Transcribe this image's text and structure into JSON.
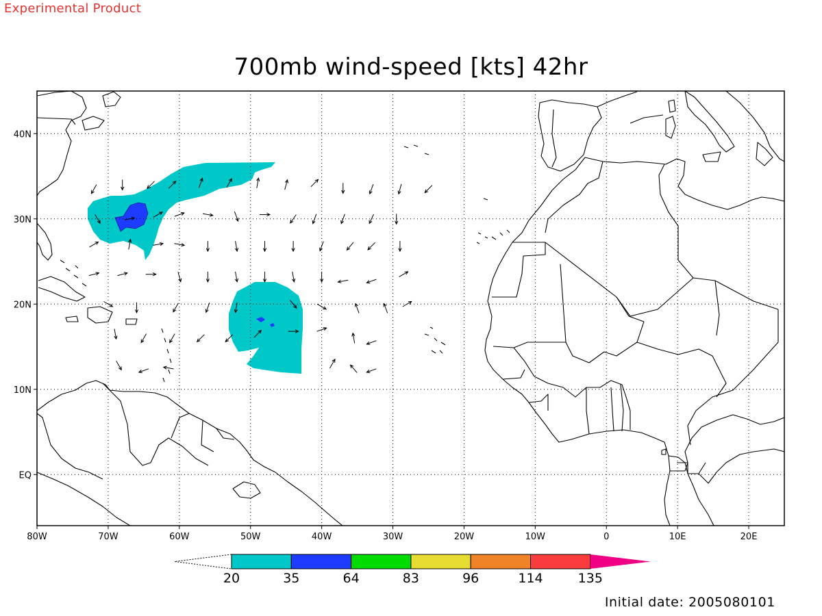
{
  "header": {
    "experimental_label": "Experimental Product",
    "title": "700mb wind-speed [kts] 42hr"
  },
  "map": {
    "projection": "cylindrical",
    "lon_range": [
      -80,
      25
    ],
    "lat_range": [
      -6,
      45
    ],
    "lon_ticks": [
      {
        "lon": -80,
        "label": "80W"
      },
      {
        "lon": -70,
        "label": "70W"
      },
      {
        "lon": -60,
        "label": "60W"
      },
      {
        "lon": -50,
        "label": "50W"
      },
      {
        "lon": -40,
        "label": "40W"
      },
      {
        "lon": -30,
        "label": "30W"
      },
      {
        "lon": -20,
        "label": "20W"
      },
      {
        "lon": -10,
        "label": "10W"
      },
      {
        "lon": 0,
        "label": "0"
      },
      {
        "lon": 10,
        "label": "10E"
      },
      {
        "lon": 20,
        "label": "20E"
      }
    ],
    "lat_ticks": [
      {
        "lat": 40,
        "label": "40N"
      },
      {
        "lat": 30,
        "label": "30N"
      },
      {
        "lat": 20,
        "label": "20N"
      },
      {
        "lat": 10,
        "label": "10N"
      },
      {
        "lat": 0,
        "label": "EQ"
      }
    ],
    "grid": "dotted",
    "colors": {
      "coast": "#000000",
      "frame": "#000000"
    },
    "wind_vectors_note_units": "kts",
    "wind_vectors": [
      {
        "lon": -72,
        "lat": 33.5,
        "dir": 240
      },
      {
        "lon": -68,
        "lat": 34,
        "dir": 270
      },
      {
        "lon": -64,
        "lat": 34,
        "dir": 225
      },
      {
        "lon": -61,
        "lat": 34,
        "dir": 45
      },
      {
        "lon": -57,
        "lat": 34.2,
        "dir": 70
      },
      {
        "lon": -53,
        "lat": 34.2,
        "dir": 60
      },
      {
        "lon": -49,
        "lat": 34.2,
        "dir": 80
      },
      {
        "lon": -45,
        "lat": 34,
        "dir": 75
      },
      {
        "lon": -41,
        "lat": 34.2,
        "dir": 45
      },
      {
        "lon": -37,
        "lat": 33.6,
        "dir": 270
      },
      {
        "lon": -33,
        "lat": 33.5,
        "dir": 250
      },
      {
        "lon": -29,
        "lat": 33.5,
        "dir": 255
      },
      {
        "lon": -25,
        "lat": 33.5,
        "dir": 225
      },
      {
        "lon": -71.5,
        "lat": 30,
        "dir": 300
      },
      {
        "lon": -67,
        "lat": 30,
        "dir": 10
      },
      {
        "lon": -63,
        "lat": 30.5,
        "dir": 30
      },
      {
        "lon": -60,
        "lat": 30.5,
        "dir": 20
      },
      {
        "lon": -56,
        "lat": 30.5,
        "dir": 350
      },
      {
        "lon": -52,
        "lat": 30.3,
        "dir": 290
      },
      {
        "lon": -48,
        "lat": 30.5,
        "dir": 0
      },
      {
        "lon": -44,
        "lat": 30,
        "dir": 235
      },
      {
        "lon": -41,
        "lat": 30,
        "dir": 250
      },
      {
        "lon": -37,
        "lat": 30,
        "dir": 250
      },
      {
        "lon": -33,
        "lat": 30,
        "dir": 245
      },
      {
        "lon": -29.5,
        "lat": 30,
        "dir": 270
      },
      {
        "lon": -72,
        "lat": 27,
        "dir": 30
      },
      {
        "lon": -67,
        "lat": 27,
        "dir": 80
      },
      {
        "lon": -63,
        "lat": 27,
        "dir": 10
      },
      {
        "lon": -60,
        "lat": 27,
        "dir": 350
      },
      {
        "lon": -56,
        "lat": 26.8,
        "dir": 270
      },
      {
        "lon": -52,
        "lat": 26.8,
        "dir": 280
      },
      {
        "lon": -48,
        "lat": 26.8,
        "dir": 270
      },
      {
        "lon": -44,
        "lat": 26.8,
        "dir": 270
      },
      {
        "lon": -40,
        "lat": 26.8,
        "dir": 250
      },
      {
        "lon": -36,
        "lat": 26.8,
        "dir": 230
      },
      {
        "lon": -33,
        "lat": 26.8,
        "dir": 225
      },
      {
        "lon": -29,
        "lat": 26.8,
        "dir": 270
      },
      {
        "lon": -72,
        "lat": 23.5,
        "dir": 15
      },
      {
        "lon": -68,
        "lat": 23.5,
        "dir": 15
      },
      {
        "lon": -64,
        "lat": 23.5,
        "dir": 0
      },
      {
        "lon": -60,
        "lat": 23.2,
        "dir": 285
      },
      {
        "lon": -56,
        "lat": 23.2,
        "dir": 270
      },
      {
        "lon": -52,
        "lat": 23.2,
        "dir": 280
      },
      {
        "lon": -48,
        "lat": 23.2,
        "dir": 270
      },
      {
        "lon": -44,
        "lat": 23.2,
        "dir": 280
      },
      {
        "lon": -40,
        "lat": 23.2,
        "dir": 270
      },
      {
        "lon": -37,
        "lat": 22.7,
        "dir": 190
      },
      {
        "lon": -33,
        "lat": 22.7,
        "dir": 200
      },
      {
        "lon": -28.5,
        "lat": 23.5,
        "dir": 30
      },
      {
        "lon": -70,
        "lat": 20,
        "dir": 330
      },
      {
        "lon": -66,
        "lat": 19.6,
        "dir": 270
      },
      {
        "lon": -60.5,
        "lat": 19.6,
        "dir": 240
      },
      {
        "lon": -56,
        "lat": 19.6,
        "dir": 250
      },
      {
        "lon": -52,
        "lat": 19.6,
        "dir": 260
      },
      {
        "lon": -44,
        "lat": 20,
        "dir": 310
      },
      {
        "lon": -40,
        "lat": 19.7,
        "dir": 330
      },
      {
        "lon": -35,
        "lat": 19.5,
        "dir": 110
      },
      {
        "lon": -31,
        "lat": 19.5,
        "dir": 110
      },
      {
        "lon": -28,
        "lat": 20,
        "dir": 30
      },
      {
        "lon": -69,
        "lat": 16.5,
        "dir": 280
      },
      {
        "lon": -65,
        "lat": 16,
        "dir": 240
      },
      {
        "lon": -61,
        "lat": 16,
        "dir": 240
      },
      {
        "lon": -57,
        "lat": 16,
        "dir": 225
      },
      {
        "lon": -53,
        "lat": 16,
        "dir": 225
      },
      {
        "lon": -49,
        "lat": 16.5,
        "dir": 45
      },
      {
        "lon": -44,
        "lat": 16.8,
        "dir": 0
      },
      {
        "lon": -40,
        "lat": 17,
        "dir": 20
      },
      {
        "lon": -35.5,
        "lat": 16,
        "dir": 100
      },
      {
        "lon": -33,
        "lat": 15.5,
        "dir": 200
      },
      {
        "lon": -68.5,
        "lat": 12.8,
        "dir": 300
      },
      {
        "lon": -65,
        "lat": 12.2,
        "dir": 200
      },
      {
        "lon": -61.5,
        "lat": 12.5,
        "dir": 170
      },
      {
        "lon": -38.5,
        "lat": 13,
        "dir": 60
      },
      {
        "lon": -35.5,
        "lat": 12.4,
        "dir": 130
      },
      {
        "lon": -33,
        "lat": 12.2,
        "dir": 200
      }
    ]
  },
  "shading": {
    "units": "kts",
    "regions": [
      {
        "name": "azores-cyclone",
        "level": "20-35",
        "color": "#00c8c8"
      },
      {
        "name": "azores-core",
        "level": "35-64",
        "color": "#1e3cff"
      },
      {
        "name": "tropical-storm",
        "level": "20-35",
        "color": "#00c8c8"
      },
      {
        "name": "tropical-storm-core",
        "level": "35-64",
        "color": "#1e3cff"
      }
    ]
  },
  "colorbar": {
    "labels": [
      "20",
      "35",
      "64",
      "83",
      "96",
      "114",
      "135"
    ],
    "colors": [
      "#00c8c8",
      "#1e3cff",
      "#00dc00",
      "#e6dc32",
      "#f08228",
      "#fa3c3c",
      "#f00082"
    ]
  },
  "footer": {
    "initial_date": "Initial date: 2005080101"
  }
}
